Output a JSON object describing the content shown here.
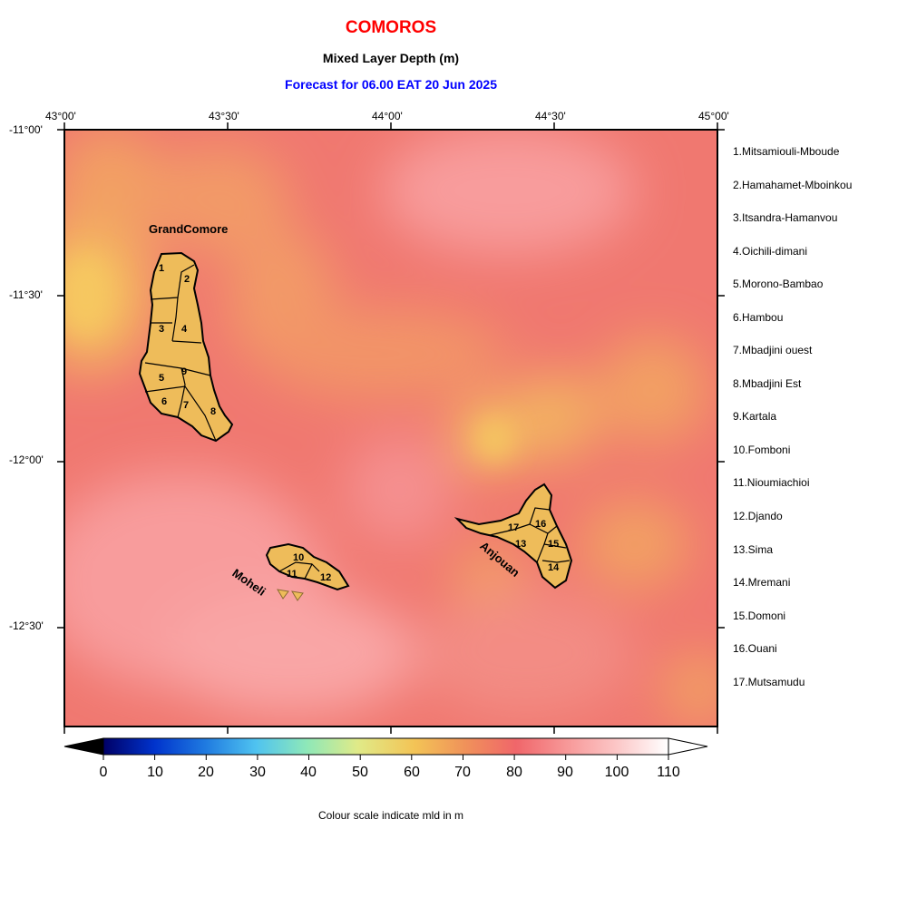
{
  "header": {
    "country": "COMOROS",
    "variable": "Mixed Layer Depth (m)",
    "forecast": "Forecast for  06.00 EAT 20 Jun 2025"
  },
  "axes": {
    "top_ticks": [
      "43°00'",
      "43°30'",
      "44°00'",
      "44°30'",
      "45°00'"
    ],
    "left_ticks": [
      "-11°00'",
      "-11°30'",
      "-12°00'",
      "-12°30'"
    ]
  },
  "islands": {
    "grand_comore": "GrandComore",
    "moheli": "Moheli",
    "anjouan": "Anjouan"
  },
  "region_numbers": [
    "1",
    "2",
    "3",
    "4",
    "5",
    "6",
    "7",
    "8",
    "9",
    "10",
    "11",
    "12",
    "13",
    "14",
    "15",
    "16",
    "17"
  ],
  "regions": [
    "1.Mitsamiouli-Mboude",
    "2.Hamahamet-Mboinkou",
    "3.Itsandra-Hamanvou",
    "4.Oichili-dimani",
    "5.Morono-Bambao",
    "6.Hambou",
    "7.Mbadjini ouest",
    "8.Mbadjini Est",
    "9.Kartala",
    "10.Fomboni",
    "11.Nioumiachioi",
    "12.Djando",
    "13.Sima",
    "14.Mremani",
    "15.Domoni",
    "16.Ouani",
    "17.Mutsamudu"
  ],
  "colorbar": {
    "ticks": [
      "0",
      "10",
      "20",
      "30",
      "40",
      "50",
      "60",
      "70",
      "80",
      "90",
      "100",
      "110"
    ],
    "caption": "Colour scale indicate mld in m",
    "min": 0,
    "max": 110,
    "colors": [
      "#000066",
      "#0033cc",
      "#1f7ae0",
      "#4fc3f0",
      "#8ee8b8",
      "#e0ea88",
      "#f3c456",
      "#f0925a",
      "#f0666a",
      "#f79898",
      "#fcc8c8",
      "#ffffff"
    ]
  },
  "colors": {
    "land": "#eebc5a",
    "sea_base": "#f07870",
    "title_red": "#ff0000",
    "forecast_blue": "#0000ff"
  }
}
